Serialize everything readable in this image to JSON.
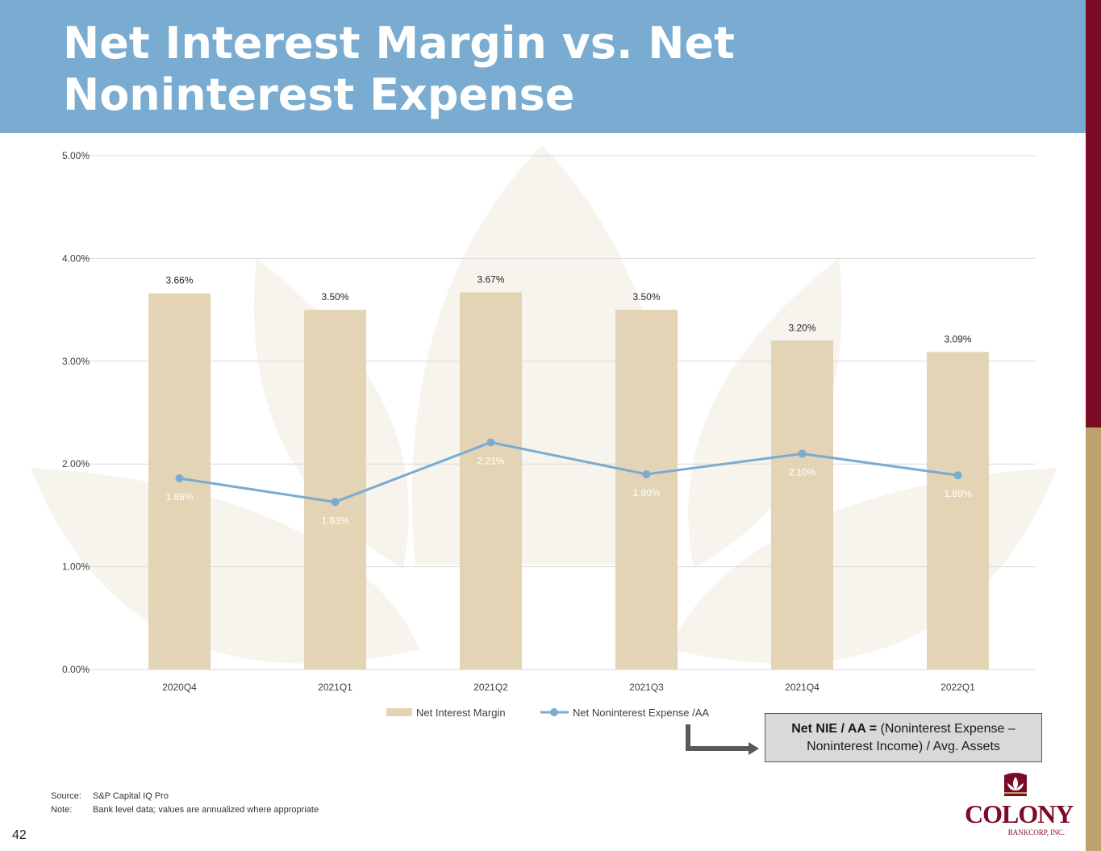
{
  "page": {
    "title": "Net Interest Margin vs. Net Noninterest Expense",
    "page_number": "42",
    "accent_colors": {
      "header": "#7aabd1",
      "maroon": "#7c0b25",
      "gold": "#bfa16d"
    }
  },
  "chart_data": {
    "type": "bar",
    "categories": [
      "2020Q4",
      "2021Q1",
      "2021Q2",
      "2021Q3",
      "2021Q4",
      "2022Q1"
    ],
    "series": [
      {
        "name": "Net Interest Margin",
        "type": "bar",
        "color": "#e3d4b5",
        "values": [
          3.66,
          3.5,
          3.67,
          3.5,
          3.2,
          3.09
        ],
        "labels": [
          "3.66%",
          "3.50%",
          "3.67%",
          "3.50%",
          "3.20%",
          "3.09%"
        ]
      },
      {
        "name": "Net Noninterest Expense /AA",
        "type": "line",
        "color": "#7aabd1",
        "values": [
          1.86,
          1.63,
          2.21,
          1.9,
          2.1,
          1.89
        ],
        "labels": [
          "1.86%",
          "1.63%",
          "2.21%",
          "1.90%",
          "2.10%",
          "1.89%"
        ]
      }
    ],
    "ylim": [
      0,
      5
    ],
    "yticks": [
      "0.00%",
      "1.00%",
      "2.00%",
      "3.00%",
      "4.00%",
      "5.00%"
    ],
    "grid": true,
    "legend_position": "bottom"
  },
  "callout": {
    "term": "Net NIE / AA =",
    "line1_rest": " (Noninterest Expense –",
    "line2": "Noninterest Income) / Avg. Assets"
  },
  "notes": {
    "source_key": "Source:",
    "source_value": "S&P Capital IQ Pro",
    "note_key": "Note:",
    "note_value": "Bank level data; values are annualized where appropriate"
  },
  "logo": {
    "word": "COLONY",
    "sub": "BANKCORP, INC."
  }
}
